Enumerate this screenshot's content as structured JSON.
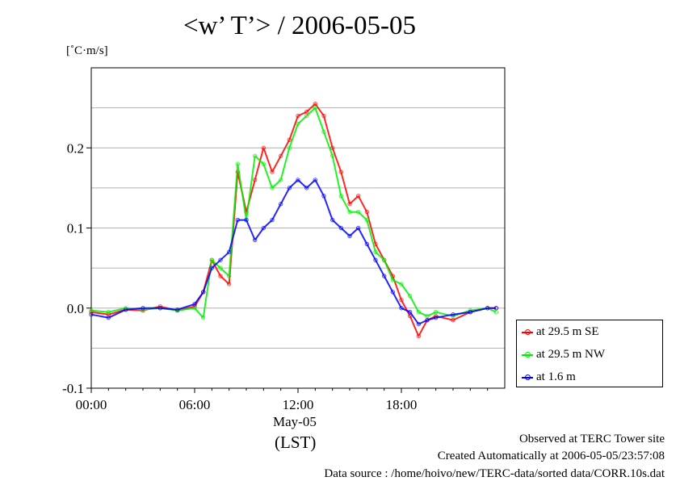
{
  "header": {
    "title": "<w’ T’> / 2006-05-05",
    "unit": "[˚C·m/s]"
  },
  "xaxis": {
    "date_label": "May-05",
    "lst_label": "(LST)"
  },
  "footer": {
    "observed": "Observed at TERC Tower site",
    "created": "Created Automatically at 2006-05-05/23:57:08",
    "source": "Data source : /home/hoivo/new/TERC-data/sorted  data/CORR.10s.dat"
  },
  "chart_data": {
    "type": "line",
    "xlabel": "",
    "ylabel": "[˚C·m/s]",
    "xlim": [
      0,
      24
    ],
    "ylim": [
      -0.1,
      0.3
    ],
    "x_ticks": [
      0,
      6,
      12,
      18
    ],
    "x_tick_labels": [
      "00:00",
      "06:00",
      "12:00",
      "18:00"
    ],
    "y_ticks": [
      -0.1,
      0.0,
      0.1,
      0.2
    ],
    "y_tick_labels": [
      "-0.1",
      "0.0",
      "0.1",
      "0.2"
    ],
    "grid": "horizontal",
    "legend_position": "outside-right-bottom",
    "x": [
      0,
      1,
      2,
      3,
      4,
      5,
      6,
      6.5,
      7,
      7.5,
      8,
      8.5,
      9,
      9.5,
      10,
      10.5,
      11,
      11.5,
      12,
      12.5,
      13,
      13.5,
      14,
      14.5,
      15,
      15.5,
      16,
      16.5,
      17,
      17.5,
      18,
      18.5,
      19,
      19.5,
      20,
      21,
      22,
      23,
      23.5
    ],
    "series": [
      {
        "name": "at 29.5 m SE",
        "color": "#ff0000",
        "values": [
          -0.005,
          -0.008,
          -0.002,
          -0.003,
          0.002,
          -0.003,
          0.002,
          0.02,
          0.06,
          0.04,
          0.03,
          0.17,
          0.12,
          0.16,
          0.2,
          0.17,
          0.19,
          0.21,
          0.24,
          0.245,
          0.255,
          0.24,
          0.2,
          0.17,
          0.13,
          0.14,
          0.12,
          0.08,
          0.06,
          0.04,
          0.01,
          -0.01,
          -0.035,
          -0.015,
          -0.01,
          -0.015,
          -0.005,
          0.0,
          0.0
        ]
      },
      {
        "name": "at 29.5 m NW",
        "color": "#00ee00",
        "values": [
          -0.003,
          -0.005,
          0.0,
          -0.002,
          0.0,
          -0.003,
          0.0,
          -0.012,
          0.06,
          0.05,
          0.04,
          0.18,
          0.11,
          0.19,
          0.18,
          0.15,
          0.16,
          0.2,
          0.23,
          0.24,
          0.25,
          0.22,
          0.19,
          0.14,
          0.12,
          0.12,
          0.11,
          0.07,
          0.06,
          0.035,
          0.03,
          0.015,
          -0.005,
          -0.01,
          -0.005,
          -0.01,
          -0.003,
          0.0,
          -0.005
        ]
      },
      {
        "name": "at 1.6 m",
        "color": "#0000ff",
        "values": [
          -0.008,
          -0.012,
          -0.002,
          0.0,
          0.0,
          -0.002,
          0.005,
          0.02,
          0.05,
          0.06,
          0.07,
          0.11,
          0.11,
          0.085,
          0.1,
          0.11,
          0.13,
          0.15,
          0.16,
          0.15,
          0.16,
          0.14,
          0.11,
          0.1,
          0.09,
          0.1,
          0.08,
          0.06,
          0.04,
          0.02,
          0.0,
          -0.005,
          -0.02,
          -0.015,
          -0.012,
          -0.008,
          -0.005,
          0.0,
          0.0
        ]
      }
    ]
  }
}
